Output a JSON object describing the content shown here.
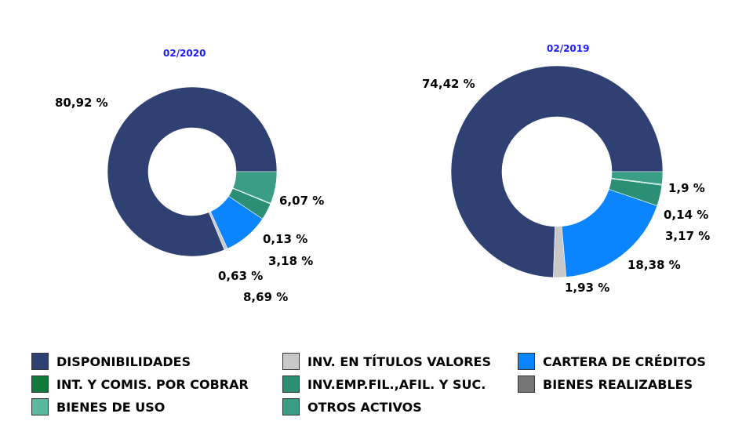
{
  "legend": [
    {
      "label": "DISPONIBILIDADES",
      "color": "#2e4172"
    },
    {
      "label": "INV. EN TÍTULOS VALORES",
      "color": "#c8c8c8"
    },
    {
      "label": "CARTERA DE CRÉDITOS",
      "color": "#0a84ff"
    },
    {
      "label": "INT. Y COMIS. POR COBRAR",
      "color": "#0f7a3c"
    },
    {
      "label": "INV.EMP.FIL.,AFIL. Y SUC.",
      "color": "#2a8f75"
    },
    {
      "label": "BIENES REALIZABLES",
      "color": "#777777"
    },
    {
      "label": "BIENES DE USO",
      "color": "#5ab8a0"
    },
    {
      "label": "OTROS ACTIVOS",
      "color": "#3a9e86"
    }
  ],
  "chart_data": [
    {
      "type": "pie",
      "donut": true,
      "title": "02/2020",
      "slices": [
        {
          "category": "DISPONIBILIDADES",
          "value": 80.92,
          "label": "80,92 %"
        },
        {
          "category": "INV. EN TÍTULOS VALORES",
          "value": 0.63,
          "label": "0,63 %"
        },
        {
          "category": "CARTERA DE CRÉDITOS",
          "value": 8.69,
          "label": "8,69 %"
        },
        {
          "category": "INV.EMP.FIL.,AFIL. Y SUC.",
          "value": 3.18,
          "label": "3,18 %"
        },
        {
          "category": "BIENES DE USO",
          "value": 0.13,
          "label": "0,13 %"
        },
        {
          "category": "OTROS ACTIVOS",
          "value": 6.07,
          "label": "6,07 %"
        }
      ]
    },
    {
      "type": "pie",
      "donut": true,
      "title": "02/2019",
      "slices": [
        {
          "category": "DISPONIBILIDADES",
          "value": 74.42,
          "label": "74,42 %"
        },
        {
          "category": "INV. EN TÍTULOS VALORES",
          "value": 1.93,
          "label": "1,93 %"
        },
        {
          "category": "CARTERA DE CRÉDITOS",
          "value": 18.38,
          "label": "18,38 %"
        },
        {
          "category": "INV.EMP.FIL.,AFIL. Y SUC.",
          "value": 3.17,
          "label": "3,17 %"
        },
        {
          "category": "BIENES DE USO",
          "value": 0.14,
          "label": "0,14 %"
        },
        {
          "category": "OTROS ACTIVOS",
          "value": 1.9,
          "label": "1,9 %"
        }
      ]
    }
  ]
}
